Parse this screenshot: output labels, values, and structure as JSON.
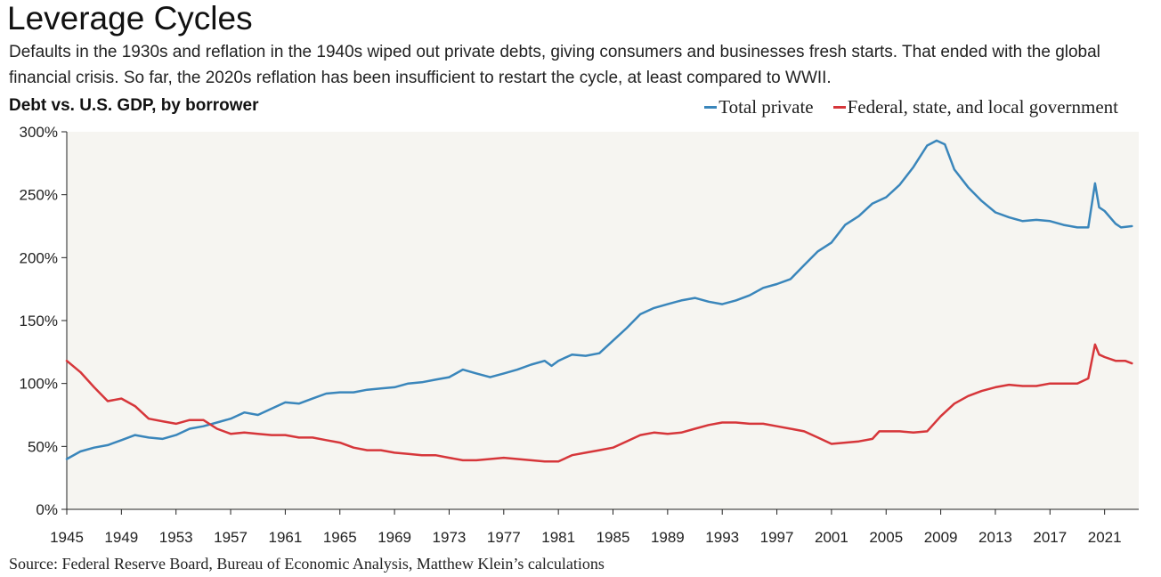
{
  "title": "Leverage Cycles",
  "subtitle": "Defaults in the 1930s and reflation in the 1940s wiped out private debts, giving consumers and businesses fresh starts. That ended with the global financial crisis. So far, the 2020s reflation has been insufficient to restart the cycle, at least compared to WWII.",
  "source": "Source: Federal Reserve Board, Bureau of Economic Analysis, Matthew Klein’s calculations",
  "chart_data": {
    "type": "line",
    "title": "Debt vs. U.S. GDP, by borrower",
    "xlabel": "",
    "ylabel": "",
    "xlim": [
      1945,
      2023.5
    ],
    "ylim": [
      0,
      300
    ],
    "grid": false,
    "legend_position": "top-right",
    "x_ticks": [
      "1945",
      "1949",
      "1953",
      "1957",
      "1961",
      "1965",
      "1969",
      "1973",
      "1977",
      "1981",
      "1985",
      "1989",
      "1993",
      "1997",
      "2001",
      "2005",
      "2009",
      "2013",
      "2017",
      "2021"
    ],
    "y_ticks": [
      "0%",
      "50%",
      "100%",
      "150%",
      "200%",
      "250%",
      "300%"
    ],
    "series": [
      {
        "name": "Total private",
        "color": "#3a86bb",
        "points": [
          [
            1945,
            40
          ],
          [
            1946,
            46
          ],
          [
            1947,
            49
          ],
          [
            1948,
            51
          ],
          [
            1949,
            55
          ],
          [
            1950,
            59
          ],
          [
            1951,
            57
          ],
          [
            1952,
            56
          ],
          [
            1953,
            59
          ],
          [
            1954,
            64
          ],
          [
            1955,
            66
          ],
          [
            1956,
            69
          ],
          [
            1957,
            72
          ],
          [
            1958,
            77
          ],
          [
            1959,
            75
          ],
          [
            1960,
            80
          ],
          [
            1961,
            85
          ],
          [
            1962,
            84
          ],
          [
            1963,
            88
          ],
          [
            1964,
            92
          ],
          [
            1965,
            93
          ],
          [
            1966,
            93
          ],
          [
            1967,
            95
          ],
          [
            1968,
            96
          ],
          [
            1969,
            97
          ],
          [
            1970,
            100
          ],
          [
            1971,
            101
          ],
          [
            1972,
            103
          ],
          [
            1973,
            105
          ],
          [
            1974,
            111
          ],
          [
            1975,
            108
          ],
          [
            1976,
            105
          ],
          [
            1977,
            108
          ],
          [
            1978,
            111
          ],
          [
            1979,
            115
          ],
          [
            1980,
            118
          ],
          [
            1980.5,
            114
          ],
          [
            1981,
            118
          ],
          [
            1982,
            123
          ],
          [
            1983,
            122
          ],
          [
            1984,
            124
          ],
          [
            1985,
            134
          ],
          [
            1986,
            144
          ],
          [
            1987,
            155
          ],
          [
            1988,
            160
          ],
          [
            1989,
            163
          ],
          [
            1990,
            166
          ],
          [
            1991,
            168
          ],
          [
            1992,
            165
          ],
          [
            1993,
            163
          ],
          [
            1994,
            166
          ],
          [
            1995,
            170
          ],
          [
            1996,
            176
          ],
          [
            1997,
            179
          ],
          [
            1998,
            183
          ],
          [
            1999,
            194
          ],
          [
            2000,
            205
          ],
          [
            2001,
            212
          ],
          [
            2002,
            226
          ],
          [
            2003,
            233
          ],
          [
            2004,
            243
          ],
          [
            2005,
            248
          ],
          [
            2006,
            258
          ],
          [
            2007,
            272
          ],
          [
            2008,
            289
          ],
          [
            2008.7,
            293
          ],
          [
            2009.3,
            290
          ],
          [
            2010,
            270
          ],
          [
            2011,
            256
          ],
          [
            2012,
            245
          ],
          [
            2013,
            236
          ],
          [
            2014,
            232
          ],
          [
            2015,
            229
          ],
          [
            2016,
            230
          ],
          [
            2017,
            229
          ],
          [
            2018,
            226
          ],
          [
            2019,
            224
          ],
          [
            2019.8,
            224
          ],
          [
            2020.3,
            259
          ],
          [
            2020.6,
            240
          ],
          [
            2021,
            237
          ],
          [
            2021.8,
            227
          ],
          [
            2022.2,
            224
          ],
          [
            2023,
            225
          ]
        ]
      },
      {
        "name": "Federal, state, and local government",
        "color": "#d6363a",
        "points": [
          [
            1945,
            118
          ],
          [
            1946,
            109
          ],
          [
            1947,
            97
          ],
          [
            1948,
            86
          ],
          [
            1949,
            88
          ],
          [
            1950,
            82
          ],
          [
            1951,
            72
          ],
          [
            1952,
            70
          ],
          [
            1953,
            68
          ],
          [
            1954,
            71
          ],
          [
            1955,
            71
          ],
          [
            1956,
            64
          ],
          [
            1957,
            60
          ],
          [
            1958,
            61
          ],
          [
            1959,
            60
          ],
          [
            1960,
            59
          ],
          [
            1961,
            59
          ],
          [
            1962,
            57
          ],
          [
            1963,
            57
          ],
          [
            1964,
            55
          ],
          [
            1965,
            53
          ],
          [
            1966,
            49
          ],
          [
            1967,
            47
          ],
          [
            1968,
            47
          ],
          [
            1969,
            45
          ],
          [
            1970,
            44
          ],
          [
            1971,
            43
          ],
          [
            1972,
            43
          ],
          [
            1973,
            41
          ],
          [
            1974,
            39
          ],
          [
            1975,
            39
          ],
          [
            1976,
            40
          ],
          [
            1977,
            41
          ],
          [
            1978,
            40
          ],
          [
            1979,
            39
          ],
          [
            1980,
            38
          ],
          [
            1981,
            38
          ],
          [
            1982,
            43
          ],
          [
            1983,
            45
          ],
          [
            1984,
            47
          ],
          [
            1985,
            49
          ],
          [
            1986,
            54
          ],
          [
            1987,
            59
          ],
          [
            1988,
            61
          ],
          [
            1989,
            60
          ],
          [
            1990,
            61
          ],
          [
            1991,
            64
          ],
          [
            1992,
            67
          ],
          [
            1993,
            69
          ],
          [
            1994,
            69
          ],
          [
            1995,
            68
          ],
          [
            1996,
            68
          ],
          [
            1997,
            66
          ],
          [
            1998,
            64
          ],
          [
            1999,
            62
          ],
          [
            2000,
            57
          ],
          [
            2001,
            52
          ],
          [
            2002,
            53
          ],
          [
            2003,
            54
          ],
          [
            2004,
            56
          ],
          [
            2004.5,
            62
          ],
          [
            2005,
            62
          ],
          [
            2006,
            62
          ],
          [
            2007,
            61
          ],
          [
            2008,
            62
          ],
          [
            2009,
            74
          ],
          [
            2010,
            84
          ],
          [
            2011,
            90
          ],
          [
            2012,
            94
          ],
          [
            2013,
            97
          ],
          [
            2014,
            99
          ],
          [
            2015,
            98
          ],
          [
            2016,
            98
          ],
          [
            2017,
            100
          ],
          [
            2018,
            100
          ],
          [
            2019,
            100
          ],
          [
            2019.8,
            104
          ],
          [
            2020.3,
            131
          ],
          [
            2020.6,
            123
          ],
          [
            2021,
            121
          ],
          [
            2021.8,
            118
          ],
          [
            2022.5,
            118
          ],
          [
            2023,
            116
          ]
        ]
      }
    ]
  }
}
